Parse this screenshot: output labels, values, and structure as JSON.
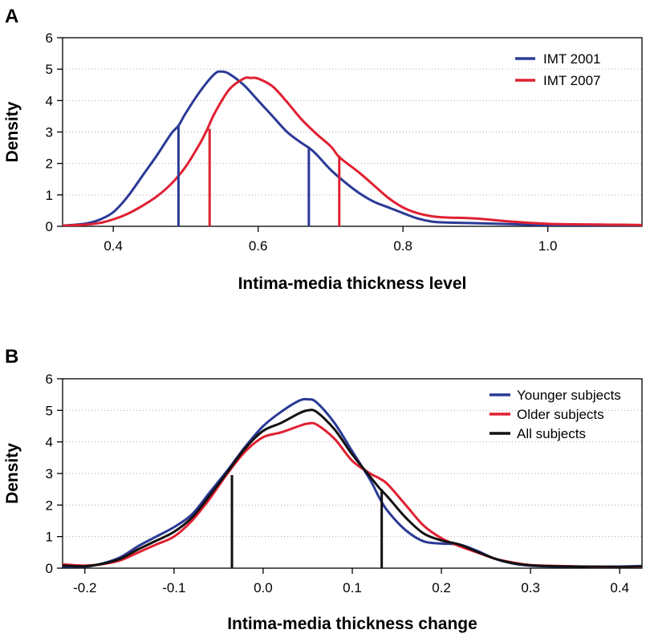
{
  "colors": {
    "blue": "#2b3a96",
    "red": "#e02032",
    "black": "#111111",
    "grid": "#aaaaaa"
  },
  "chart_data": [
    {
      "panel_label": "A",
      "type": "line",
      "xlabel": "Intima-media thickness level",
      "ylabel": "Density",
      "xlim": [
        0.33,
        1.13
      ],
      "ylim": [
        0,
        6
      ],
      "xticks": [
        "0.4",
        "0.6",
        "0.8",
        "1.0"
      ],
      "yticks": [
        "0",
        "1",
        "2",
        "3",
        "4",
        "5",
        "6"
      ],
      "grid": "horizontal dotted",
      "legend_position": "top-right",
      "series": [
        {
          "name": "IMT 2001",
          "color": "#2b3a96",
          "x": [
            0.33,
            0.36,
            0.38,
            0.4,
            0.42,
            0.44,
            0.46,
            0.48,
            0.49,
            0.5,
            0.52,
            0.54,
            0.55,
            0.56,
            0.58,
            0.6,
            0.62,
            0.64,
            0.66,
            0.67,
            0.68,
            0.7,
            0.72,
            0.74,
            0.76,
            0.78,
            0.8,
            0.82,
            0.84,
            0.86,
            0.9,
            0.95,
            1.0,
            1.05,
            1.1,
            1.13
          ],
          "y": [
            0.02,
            0.08,
            0.2,
            0.45,
            0.95,
            1.6,
            2.25,
            2.95,
            3.2,
            3.6,
            4.3,
            4.85,
            4.92,
            4.85,
            4.5,
            4.0,
            3.5,
            3.0,
            2.65,
            2.5,
            2.3,
            1.8,
            1.4,
            1.05,
            0.78,
            0.6,
            0.42,
            0.25,
            0.15,
            0.12,
            0.1,
            0.07,
            0.03,
            0.03,
            0.03,
            0.02
          ]
        },
        {
          "name": "IMT 2007",
          "color": "#e02032",
          "x": [
            0.33,
            0.36,
            0.38,
            0.4,
            0.42,
            0.44,
            0.46,
            0.48,
            0.5,
            0.52,
            0.53,
            0.54,
            0.56,
            0.58,
            0.59,
            0.6,
            0.62,
            0.64,
            0.66,
            0.68,
            0.7,
            0.71,
            0.72,
            0.74,
            0.76,
            0.78,
            0.8,
            0.82,
            0.84,
            0.86,
            0.9,
            0.95,
            1.0,
            1.05,
            1.1,
            1.13
          ],
          "y": [
            0.02,
            0.05,
            0.1,
            0.22,
            0.4,
            0.65,
            0.95,
            1.35,
            1.9,
            2.65,
            3.1,
            3.6,
            4.35,
            4.7,
            4.72,
            4.7,
            4.45,
            3.95,
            3.4,
            2.95,
            2.55,
            2.25,
            2.05,
            1.7,
            1.3,
            0.9,
            0.6,
            0.42,
            0.32,
            0.28,
            0.25,
            0.15,
            0.08,
            0.06,
            0.05,
            0.04
          ]
        }
      ],
      "markers": [
        {
          "x": 0.49,
          "y": 3.2,
          "color": "#2b3a96"
        },
        {
          "x": 0.67,
          "y": 2.5,
          "color": "#2b3a96"
        },
        {
          "x": 0.533,
          "y": 3.1,
          "color": "#e02032"
        },
        {
          "x": 0.712,
          "y": 2.25,
          "color": "#e02032"
        }
      ]
    },
    {
      "panel_label": "B",
      "type": "line",
      "xlabel": "Intima-media thickness change",
      "ylabel": "Density",
      "xlim": [
        -0.225,
        0.425
      ],
      "ylim": [
        0,
        6
      ],
      "xticks": [
        "-0.2",
        "-0.1",
        "0.0",
        "0.1",
        "0.2",
        "0.3",
        "0.4"
      ],
      "yticks": [
        "0",
        "1",
        "2",
        "3",
        "4",
        "5",
        "6"
      ],
      "grid": "horizontal dotted",
      "legend_position": "top-right",
      "series": [
        {
          "name": "Younger subjects",
          "color": "#2b3a96",
          "x": [
            -0.225,
            -0.2,
            -0.18,
            -0.16,
            -0.14,
            -0.12,
            -0.1,
            -0.08,
            -0.06,
            -0.04,
            -0.02,
            0.0,
            0.02,
            0.04,
            0.05,
            0.06,
            0.08,
            0.1,
            0.12,
            0.13,
            0.14,
            0.16,
            0.18,
            0.2,
            0.22,
            0.24,
            0.26,
            0.28,
            0.3,
            0.33,
            0.36,
            0.4,
            0.425
          ],
          "y": [
            0.05,
            0.05,
            0.15,
            0.35,
            0.7,
            1.0,
            1.3,
            1.7,
            2.4,
            3.1,
            3.85,
            4.5,
            4.95,
            5.3,
            5.35,
            5.25,
            4.6,
            3.7,
            2.8,
            2.25,
            1.8,
            1.2,
            0.85,
            0.78,
            0.75,
            0.55,
            0.3,
            0.15,
            0.08,
            0.05,
            0.05,
            0.05,
            0.07
          ]
        },
        {
          "name": "Older subjects",
          "color": "#e02032",
          "x": [
            -0.225,
            -0.2,
            -0.18,
            -0.16,
            -0.14,
            -0.12,
            -0.1,
            -0.08,
            -0.06,
            -0.04,
            -0.02,
            0.0,
            0.02,
            0.04,
            0.05,
            0.06,
            0.08,
            0.1,
            0.12,
            0.13,
            0.14,
            0.16,
            0.18,
            0.2,
            0.22,
            0.24,
            0.26,
            0.28,
            0.3,
            0.33,
            0.36,
            0.4,
            0.425
          ],
          "y": [
            0.12,
            0.08,
            0.13,
            0.25,
            0.5,
            0.75,
            1.0,
            1.5,
            2.2,
            3.0,
            3.7,
            4.15,
            4.3,
            4.5,
            4.58,
            4.55,
            4.1,
            3.4,
            3.0,
            2.85,
            2.65,
            2.0,
            1.35,
            0.95,
            0.7,
            0.5,
            0.3,
            0.18,
            0.1,
            0.07,
            0.05,
            0.03,
            0.03
          ]
        },
        {
          "name": "All subjects",
          "color": "#111111",
          "x": [
            -0.225,
            -0.2,
            -0.18,
            -0.16,
            -0.14,
            -0.12,
            -0.1,
            -0.08,
            -0.06,
            -0.04,
            -0.02,
            0.0,
            0.02,
            0.04,
            0.05,
            0.06,
            0.08,
            0.1,
            0.12,
            0.13,
            0.14,
            0.16,
            0.18,
            0.2,
            0.22,
            0.24,
            0.26,
            0.28,
            0.3,
            0.33,
            0.36,
            0.4,
            0.425
          ],
          "y": [
            0.08,
            0.06,
            0.14,
            0.3,
            0.6,
            0.87,
            1.15,
            1.6,
            2.3,
            3.05,
            3.8,
            4.35,
            4.6,
            4.9,
            5.0,
            4.95,
            4.4,
            3.6,
            2.9,
            2.55,
            2.25,
            1.6,
            1.1,
            0.88,
            0.75,
            0.52,
            0.3,
            0.16,
            0.09,
            0.06,
            0.05,
            0.04,
            0.05
          ]
        }
      ],
      "markers": [
        {
          "x": -0.035,
          "y": 2.95,
          "color": "#111111"
        },
        {
          "x": 0.133,
          "y": 2.5,
          "color": "#111111"
        }
      ]
    }
  ]
}
